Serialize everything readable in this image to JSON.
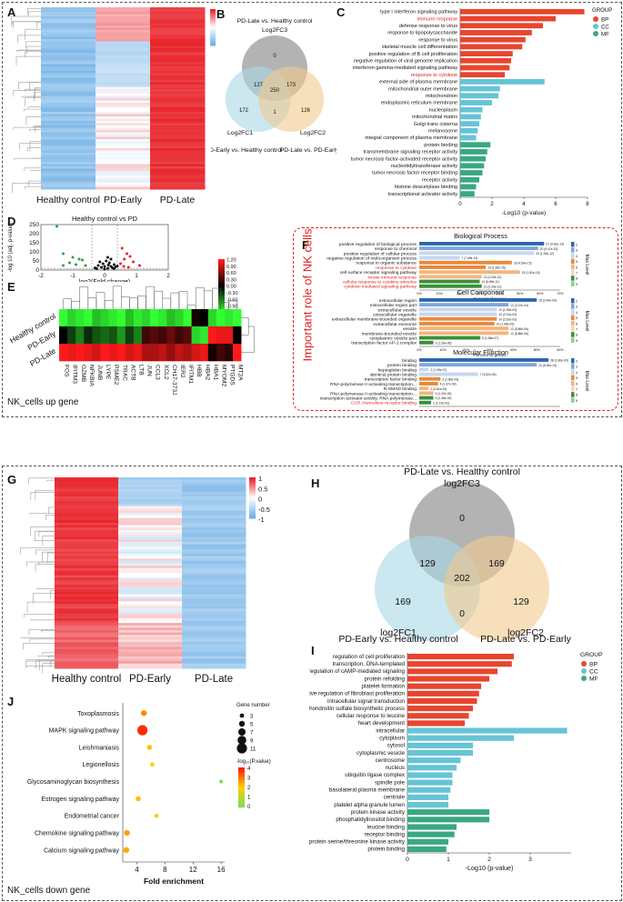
{
  "section_top": {
    "footer": "NK_cells up gene",
    "panel_labels": {
      "A": "A",
      "B": "B",
      "C": "C",
      "D": "D",
      "E": "E",
      "F": "F"
    },
    "important_title": "Important role of NK cells"
  },
  "section_bottom": {
    "footer": "NK_cells down gene",
    "panel_labels": {
      "G": "G",
      "H": "H",
      "I": "I",
      "J": "J"
    }
  },
  "colors": {
    "up": "#e8242b",
    "down": "#6fb0e6",
    "mid": "#ffffff",
    "bp": "#e8452f",
    "cc": "#66c4d6",
    "mf": "#3aa882"
  },
  "chart_data": [
    {
      "id": "A",
      "type": "heatmap",
      "title": "",
      "columns": [
        "Healthy control",
        "PD-Early",
        "PD-Late"
      ],
      "legend_ticks": [
        "1",
        "0.5",
        "0",
        "-0.5",
        "-1"
      ],
      "rows_approx": 80,
      "pattern": "Healthy control low (blue), PD-Early mixed/near zero, PD-Late high (red)"
    },
    {
      "id": "B",
      "type": "venn",
      "sets": [
        "Log2FC1",
        "Log2FC2",
        "Log2FC3"
      ],
      "set_titles": [
        "PD-Early vs. Healthy control",
        "PD-Late vs. PD-Early",
        "PD-Late vs. Healthy control"
      ],
      "regions": {
        "only3": "0",
        "only1": "172",
        "only2": "126",
        "c13": "127",
        "c23": "173",
        "c12": "1",
        "all": "250"
      }
    },
    {
      "id": "C",
      "type": "bar",
      "orientation": "horizontal",
      "xlabel": "-Log10 (p-value)",
      "xlim": [
        0,
        8
      ],
      "xticks": [
        "0",
        "2",
        "4",
        "6",
        "8"
      ],
      "legend_title": "GROUP",
      "legend": [
        "BP",
        "CC",
        "MF"
      ],
      "categories": [
        "type I interferon signaling pathway",
        "immune response",
        "defense response to virus",
        "response to lipopolysaccharide",
        "response to virus",
        "skeletal muscle cell differentiation",
        "positive regulation of B cell proliferation",
        "negative regulation of viral genome replication",
        "interferon-gamma-mediated signaling pathway",
        "response to cytokine",
        "external side of plasma membrane",
        "mitochondrial outer membrane",
        "mitochondrion",
        "endoplasmic reticulum membrane",
        "nucleoplasm",
        "mitochondrial matrix",
        "Golgi trans cisterna",
        "melanosome",
        "integral component of plasma membrane",
        "protein binding",
        "transmembrane signaling receptor activity",
        "tumor necrosis factor-activated receptor activity",
        "nucleotidyltransferase activity",
        "tumor necrosis factor receptor binding",
        "receptor activity",
        "histone deacetylase binding",
        "transcriptional activator activity"
      ],
      "values": [
        7.8,
        6.0,
        5.2,
        4.5,
        4.1,
        3.9,
        3.3,
        3.2,
        3.1,
        2.8,
        5.3,
        2.5,
        2.4,
        2.0,
        1.4,
        1.3,
        1.2,
        1.1,
        1.0,
        1.9,
        1.7,
        1.6,
        1.5,
        1.4,
        1.2,
        1.0,
        0.9
      ],
      "groups": [
        "BP",
        "BP",
        "BP",
        "BP",
        "BP",
        "BP",
        "BP",
        "BP",
        "BP",
        "BP",
        "CC",
        "CC",
        "CC",
        "CC",
        "CC",
        "CC",
        "CC",
        "CC",
        "CC",
        "MF",
        "MF",
        "MF",
        "MF",
        "MF",
        "MF",
        "MF",
        "MF"
      ],
      "highlight": [
        "immune response",
        "response to cytokine"
      ]
    },
    {
      "id": "D",
      "type": "scatter",
      "title": "Healthy control vs PD",
      "xlabel": "log2(Fold change)",
      "ylabel": "-log 10 (adj. p-value)",
      "xlim": [
        -2,
        2
      ],
      "ylim": [
        0,
        250
      ],
      "xticks": [
        "-2",
        "-1",
        "0",
        "1",
        "2"
      ],
      "yticks": [
        "0",
        "50",
        "100",
        "150",
        "200",
        "250"
      ],
      "up_points": [
        [
          0.55,
          120
        ],
        [
          0.7,
          90
        ],
        [
          0.62,
          60
        ],
        [
          0.9,
          45
        ],
        [
          0.5,
          35
        ],
        [
          0.8,
          75
        ],
        [
          1.1,
          25
        ],
        [
          0.6,
          20
        ],
        [
          0.75,
          15
        ]
      ],
      "down_points": [
        [
          -1.5,
          240
        ],
        [
          -1.3,
          90
        ],
        [
          -1.0,
          70
        ],
        [
          -0.8,
          60
        ],
        [
          -0.7,
          55
        ],
        [
          -1.1,
          40
        ],
        [
          -0.9,
          30
        ],
        [
          -0.6,
          25
        ],
        [
          -1.3,
          25
        ]
      ],
      "ns_points": [
        [
          0.1,
          10
        ],
        [
          0.2,
          20
        ],
        [
          -0.1,
          15
        ],
        [
          0.3,
          30
        ],
        [
          -0.2,
          25
        ],
        [
          0.0,
          5
        ],
        [
          0.15,
          40
        ],
        [
          -0.05,
          35
        ],
        [
          0.25,
          12
        ],
        [
          0.35,
          18
        ],
        [
          -0.25,
          8
        ],
        [
          0.05,
          50
        ],
        [
          0.12,
          28
        ],
        [
          -0.15,
          45
        ],
        [
          0.2,
          60
        ],
        [
          0.3,
          8
        ],
        [
          0.1,
          70
        ],
        [
          -0.3,
          12
        ],
        [
          0.4,
          22
        ],
        [
          0.0,
          20
        ]
      ]
    },
    {
      "id": "E",
      "type": "heatmap",
      "rows": [
        "Healthy control",
        "PD-Early",
        "PD-Late"
      ],
      "columns": [
        "FOS",
        "IFITM3",
        "GZMB",
        "NFKBIA",
        "JUNB",
        "LYPE",
        "PSME2",
        "TRAC",
        "ACTB",
        "LTB",
        "JUN",
        "CCL3",
        "XCL2",
        "CH17-373J23.1",
        "IER2",
        "IFITM1",
        "HBB",
        "HBA2",
        "HBA1",
        "MYOM2",
        "PTGDS",
        "MT2A"
      ],
      "legend_ticks": [
        "1.20",
        "0.90",
        "0.60",
        "0.30",
        "0.00",
        "-0.30",
        "-0.60",
        "-0.90",
        "-1.20"
      ],
      "values": [
        [
          -1.2,
          -1.0,
          -1.1,
          -1.2,
          -0.9,
          -1.0,
          -1.1,
          -1.2,
          -0.9,
          -1.1,
          -1.0,
          -1.2,
          -1.1,
          -0.9,
          -1.0,
          -1.2,
          0.1,
          0.0,
          -1.0,
          -1.2,
          -1.1,
          -1.2
        ],
        [
          0.0,
          -0.3,
          -0.6,
          -0.2,
          -0.4,
          -0.5,
          -0.4,
          -0.7,
          -0.3,
          -0.6,
          0.3,
          0.4,
          0.3,
          0.5,
          0.3,
          0.4,
          -1.0,
          -1.1,
          1.2,
          1.1,
          1.1,
          0.0
        ],
        [
          1.2,
          1.1,
          1.2,
          1.1,
          1.0,
          1.2,
          1.1,
          1.2,
          1.0,
          1.1,
          0.8,
          0.8,
          0.9,
          0.7,
          0.9,
          0.8,
          1.0,
          1.1,
          0.1,
          0.3,
          0.2,
          1.2
        ]
      ]
    },
    {
      "id": "F",
      "type": "bar",
      "orientation": "horizontal",
      "xlabel": "Percent of genes",
      "legend_title": "Max Level",
      "subcharts": [
        {
          "title": "Biological Process",
          "xticks": [
            "0%",
            "10%",
            "20%",
            "30%",
            "40%",
            "50%",
            "60%",
            "70%"
          ],
          "xmax": 70,
          "categories": [
            "positive regulation of biological process",
            "response to chemical",
            "positive regulation of cellular process",
            "negative regulation of multi-organism process",
            "response to organic substance",
            "response to cytokine",
            "cell surface receptor signaling pathway",
            "innate immune response",
            "cellular response to cytokine stimulus",
            "cytokine-mediated signaling pathway"
          ],
          "values": [
            62,
            59,
            57,
            20,
            46,
            33,
            50,
            31,
            30,
            31
          ],
          "labels": [
            "21 (9.81e-14)",
            "20 (5.47e-15)",
            "20 (1.54e-12)",
            "7 (7.65e-13)",
            "18 (4.54e-15)",
            "14 (1.96e-15)",
            "19 (1.81e-13)",
            "13 (2.00e-11)",
            "12 (6.69e-11)",
            "12 (3.34e-12)"
          ],
          "highlight": [
            "response to cytokine",
            "innate immune response",
            "cellular response to cytokine stimulus",
            "cytokine-mediated signaling pathway"
          ]
        },
        {
          "title": "Cell Component",
          "xticks": [
            "0%",
            "10%",
            "20%",
            "30%",
            "40%",
            "50%",
            "60%"
          ],
          "xmax": 60,
          "categories": [
            "extracellular region",
            "extracellular region part",
            "extracellular vesicle",
            "extracellular organelle",
            "extracellular membrane-bounded organelle",
            "extracellular exosome",
            "vesicle",
            "membrane-bounded vesicle",
            "cytoplasmic vesicle part",
            "transcription factor AP-1 complex"
          ],
          "values": [
            50,
            38,
            33,
            33,
            33,
            32,
            38,
            38,
            26,
            6
          ],
          "labels": [
            "15 (2.44e-04)",
            "13 (2.37e-04)",
            "10 (1.99e-03)",
            "10 (2.01e-03)",
            "10 (2.62e-03)",
            "10 (1.98e-03)",
            "12 (5.86e-06)",
            "12 (5.86e-06)",
            "8 (1.86e-07)",
            "2 (1.26e-05)"
          ]
        },
        {
          "title": "Molecular Function",
          "xticks": [
            "0%",
            "10%",
            "20%",
            "30%",
            "40%",
            "50%",
            "60%"
          ],
          "xmax": 60,
          "categories": [
            "binding",
            "protein binding",
            "heptoglobin binding",
            "identical protein binding",
            "transcription factor binding",
            "RNA polymerase II activating transcription...",
            "R-SMAD binding",
            "RNA polymerase II activating transcription...",
            "transcription activator activity, RNA polymerase...",
            "CCR chemokine receptor binding"
          ],
          "values": [
            55,
            50,
            4,
            25,
            9,
            8,
            4,
            6,
            6,
            5
          ],
          "labels": [
            "28 (1.80e-03)",
            "24 (6.30e-13)",
            "2 (1.09e-07)",
            "7 (3.82e-05)",
            "3 (1.80e-03)",
            "4 (1.37e-03)",
            "2 (3.61e-03)",
            "3 (1.22e-03)",
            "3 (2.46e-04)",
            "2 (1.01e-03)"
          ],
          "highlight": [
            "CCR chemokine receptor binding"
          ]
        }
      ]
    },
    {
      "id": "G",
      "type": "heatmap",
      "columns": [
        "Healthy control",
        "PD-Early",
        "PD-Late"
      ],
      "legend_ticks": [
        "1",
        "0.5",
        "0",
        "-0.5",
        "-1"
      ],
      "rows_approx": 80,
      "pattern": "Healthy control high (red), PD-Early mixed/near zero, PD-Late low (blue)"
    },
    {
      "id": "H",
      "type": "venn",
      "sets": [
        "log2FC1",
        "log2FC2",
        "log2FC3"
      ],
      "set_titles": [
        "PD-Early vs. Healthy control",
        "PD-Late vs. PD-Early",
        "PD-Late vs. Healthy control"
      ],
      "regions": {
        "only3": "0",
        "only1": "169",
        "only2": "129",
        "c13": "129",
        "c23": "169",
        "c12": "0",
        "all": "202"
      }
    },
    {
      "id": "I",
      "type": "bar",
      "orientation": "horizontal",
      "xlabel": "-Log10 (p-value)",
      "xlim": [
        0,
        4
      ],
      "xticks": [
        "0",
        "1",
        "2",
        "3"
      ],
      "legend_title": "GROUP",
      "legend": [
        "BP",
        "CC",
        "MF"
      ],
      "categories": [
        "regulation of cell proliferation",
        "transcription, DNA-templated",
        "positive regulation of cAMP-mediated signaling",
        "protein refolding",
        "platelet formation",
        "positive regulation of fibroblast proliferation",
        "intracellular signal transduction",
        "chondroitin sulfate biosynthetic process",
        "cellular response to leucine",
        "heart development",
        "intracellular",
        "cytoplasm",
        "cytosol",
        "cytoplasmic vesicle",
        "centrosome",
        "nucleus",
        "ubiquitin ligase complex",
        "spindle pole",
        "basolateral plasma membrane",
        "centriole",
        "platelet alpha granule lumen",
        "protein kinase activity",
        "phosphatidylinositol binding",
        "leucine binding",
        "receptor binding",
        "protein serine/threonine kinase activity",
        "protein binding"
      ],
      "values": [
        2.6,
        2.55,
        2.2,
        2.0,
        1.8,
        1.75,
        1.7,
        1.6,
        1.5,
        1.4,
        3.9,
        2.6,
        1.6,
        1.6,
        1.3,
        1.2,
        1.1,
        1.1,
        1.05,
        1.0,
        1.0,
        2.0,
        2.0,
        1.2,
        1.15,
        1.0,
        0.95
      ],
      "groups": [
        "BP",
        "BP",
        "BP",
        "BP",
        "BP",
        "BP",
        "BP",
        "BP",
        "BP",
        "BP",
        "CC",
        "CC",
        "CC",
        "CC",
        "CC",
        "CC",
        "CC",
        "CC",
        "CC",
        "CC",
        "CC",
        "MF",
        "MF",
        "MF",
        "MF",
        "MF",
        "MF"
      ]
    },
    {
      "id": "J",
      "type": "scatter",
      "xlabel": "Fold enrichment",
      "xlim": [
        2,
        16.5
      ],
      "xticks": [
        "4",
        "8",
        "12",
        "16"
      ],
      "categories": [
        "Toxoplasmosis",
        "MAPK signaling pathway",
        "Leishmaniasis",
        "Legionellosis",
        "Glycosaminoglycan biosynthesis",
        "Estrogen signaling pathway",
        "Endometrial cancer",
        "Chemokine signaling pathway",
        "Calcium signaling pathway"
      ],
      "x": [
        5.0,
        4.8,
        5.8,
        6.2,
        16.0,
        4.2,
        6.8,
        2.6,
        2.5
      ],
      "gene_number": [
        5,
        11,
        4,
        3,
        2,
        4,
        3,
        5,
        5
      ],
      "neglog10p": [
        2.8,
        3.8,
        2.2,
        2.0,
        0.2,
        2.2,
        1.8,
        2.5,
        2.4
      ],
      "size_legend_title": "Gene number",
      "size_legend": [
        "3",
        "5",
        "7",
        "9",
        "11"
      ],
      "color_legend_title": "-log₁₀(P.value)",
      "color_legend": [
        "4",
        "3",
        "2",
        "1",
        "0"
      ]
    }
  ]
}
